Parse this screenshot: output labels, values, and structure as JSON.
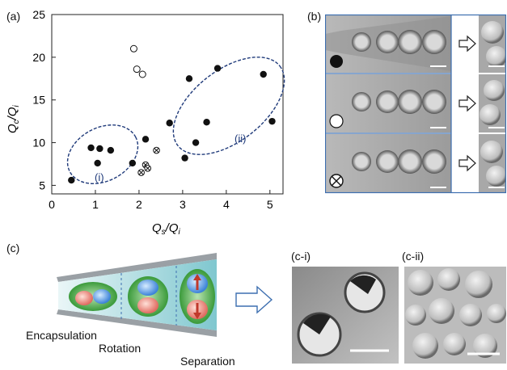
{
  "panel_labels": {
    "a": "(a)",
    "b": "(b)",
    "c": "(c)",
    "ci": "(c-i)",
    "cii": "(c-ii)"
  },
  "chart_data": {
    "type": "scatter",
    "xlabel_main": "Q",
    "xlabel_sub": "s",
    "xlabel_den": "/Q",
    "xlabel_den_sub": "i",
    "ylabel_main": "Q",
    "ylabel_sub": "c",
    "ylabel_den": "/Q",
    "ylabel_den_sub": "i",
    "xlim": [
      0,
      5.3
    ],
    "ylim": [
      4,
      25
    ],
    "xticks": [
      0,
      1,
      2,
      3,
      4,
      5
    ],
    "yticks": [
      5,
      10,
      15,
      20,
      25
    ],
    "grid": false,
    "series": [
      {
        "marker": "filled-circle",
        "points": [
          [
            0.45,
            5.6
          ],
          [
            0.9,
            9.4
          ],
          [
            1.05,
            7.6
          ],
          [
            1.35,
            9.1
          ],
          [
            1.1,
            9.3
          ],
          [
            1.85,
            7.6
          ],
          [
            2.15,
            10.4
          ],
          [
            2.7,
            12.3
          ],
          [
            3.05,
            8.2
          ],
          [
            3.15,
            17.5
          ],
          [
            3.3,
            10.0
          ],
          [
            3.55,
            12.4
          ],
          [
            3.8,
            18.7
          ],
          [
            4.85,
            18.0
          ],
          [
            5.05,
            12.5
          ]
        ]
      },
      {
        "marker": "open-circle",
        "points": [
          [
            1.88,
            21.0
          ],
          [
            1.95,
            18.6
          ],
          [
            2.08,
            18.0
          ]
        ]
      },
      {
        "marker": "crossed-circle",
        "points": [
          [
            2.4,
            9.1
          ],
          [
            2.15,
            7.4
          ],
          [
            2.2,
            7.0
          ],
          [
            2.05,
            6.5
          ]
        ]
      }
    ],
    "annotations": [
      "(i)",
      "(ii)"
    ]
  },
  "process": {
    "encapsulation": "Encapsulation",
    "rotation": "Rotation",
    "separation": "Separation"
  },
  "colors": {
    "filled_marker": "#111111",
    "ellipse": "#1f3a7a",
    "annotation": "#1f3a7a",
    "panel_border": "#3d6fb0",
    "droplet_green": "#3a9a3a",
    "drop_blue": "#4a90d9",
    "drop_red": "#e06060"
  }
}
